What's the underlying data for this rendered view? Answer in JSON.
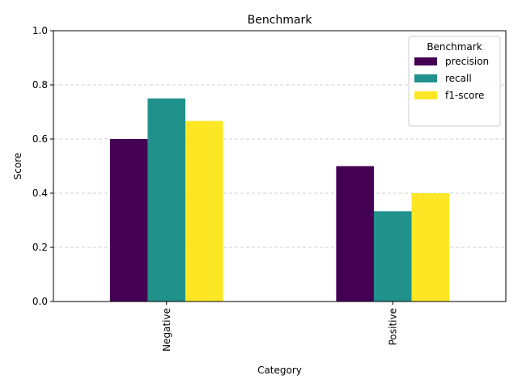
{
  "chart_data": {
    "type": "bar",
    "title": "Benchmark",
    "xlabel": "Category",
    "ylabel": "Score",
    "categories": [
      "Negative",
      "Positive"
    ],
    "series": [
      {
        "name": "precision",
        "values": [
          0.6,
          0.5
        ],
        "color": "#440154"
      },
      {
        "name": "recall",
        "values": [
          0.75,
          0.3333
        ],
        "color": "#21918c"
      },
      {
        "name": "f1-score",
        "values": [
          0.6667,
          0.4
        ],
        "color": "#fde725"
      }
    ],
    "ylim": [
      0,
      1.0
    ],
    "yticks": [
      "0.0",
      "0.2",
      "0.4",
      "0.6",
      "0.8",
      "1.0"
    ],
    "grid": "y-dashed",
    "legend": {
      "title": "Benchmark",
      "placement": "top-right"
    }
  }
}
